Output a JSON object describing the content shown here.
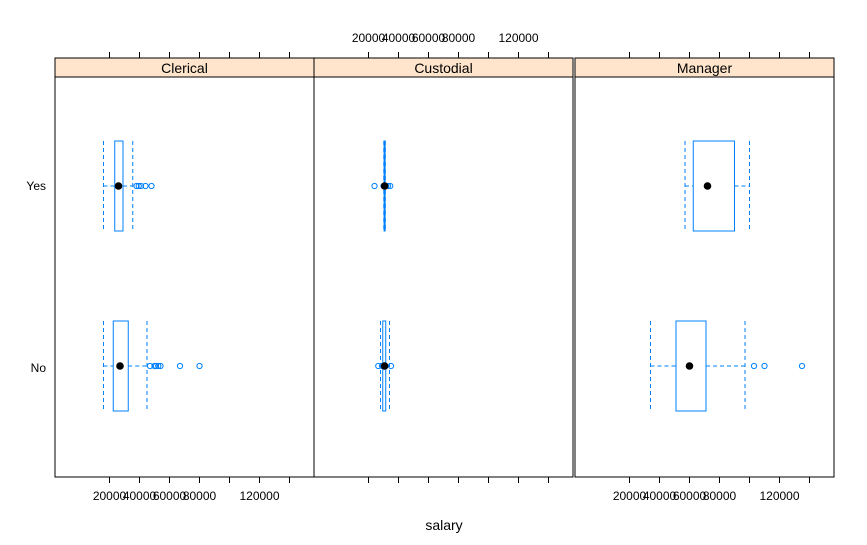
{
  "chart_data": {
    "type": "boxplot",
    "xlabel": "salary",
    "ylabel": "",
    "categories": [
      "Yes",
      "No"
    ],
    "xlim": [
      0,
      140000
    ],
    "x_ticks": [
      20000,
      40000,
      60000,
      80000,
      120000
    ],
    "x_tick_labels": [
      "20000",
      "40000",
      "60000",
      "80000",
      "120000"
    ],
    "colors": {
      "strip_fill": "#ffe5cc",
      "box": "#0080ff",
      "median_dot": "#000000",
      "frame": "#000000"
    },
    "panels": [
      {
        "name": "Clerical",
        "boxes": [
          {
            "category": "Yes",
            "whisker_low": 16000,
            "q1": 23500,
            "median": 26000,
            "q3": 29000,
            "whisker_high": 35500,
            "outliers": [
              38000,
              39500,
              41000,
              44000,
              48000
            ]
          },
          {
            "category": "No",
            "whisker_low": 16000,
            "q1": 22500,
            "median": 27000,
            "q3": 32500,
            "whisker_high": 45000,
            "outliers": [
              47000,
              50000,
              51000,
              52500,
              54000,
              67000,
              80000
            ]
          }
        ]
      },
      {
        "name": "Custodial",
        "boxes": [
          {
            "category": "Yes",
            "whisker_low": 30200,
            "q1": 30400,
            "median": 30750,
            "q3": 31000,
            "whisker_high": 31200,
            "outliers": [
              24000,
              30000,
              31800,
              33000,
              34500
            ]
          },
          {
            "category": "No",
            "whisker_low": 28000,
            "q1": 29500,
            "median": 30750,
            "q3": 31500,
            "whisker_high": 34000,
            "outliers": [
              26500,
              29000,
              35000
            ]
          }
        ]
      },
      {
        "name": "Manager",
        "boxes": [
          {
            "category": "Yes",
            "whisker_low": 57000,
            "q1": 62500,
            "median": 72000,
            "q3": 90000,
            "whisker_high": 100000,
            "outliers": []
          },
          {
            "category": "No",
            "whisker_low": 34000,
            "q1": 51000,
            "median": 60000,
            "q3": 71000,
            "whisker_high": 97000,
            "outliers": [
              103000,
              110000,
              135000
            ]
          }
        ]
      }
    ]
  }
}
